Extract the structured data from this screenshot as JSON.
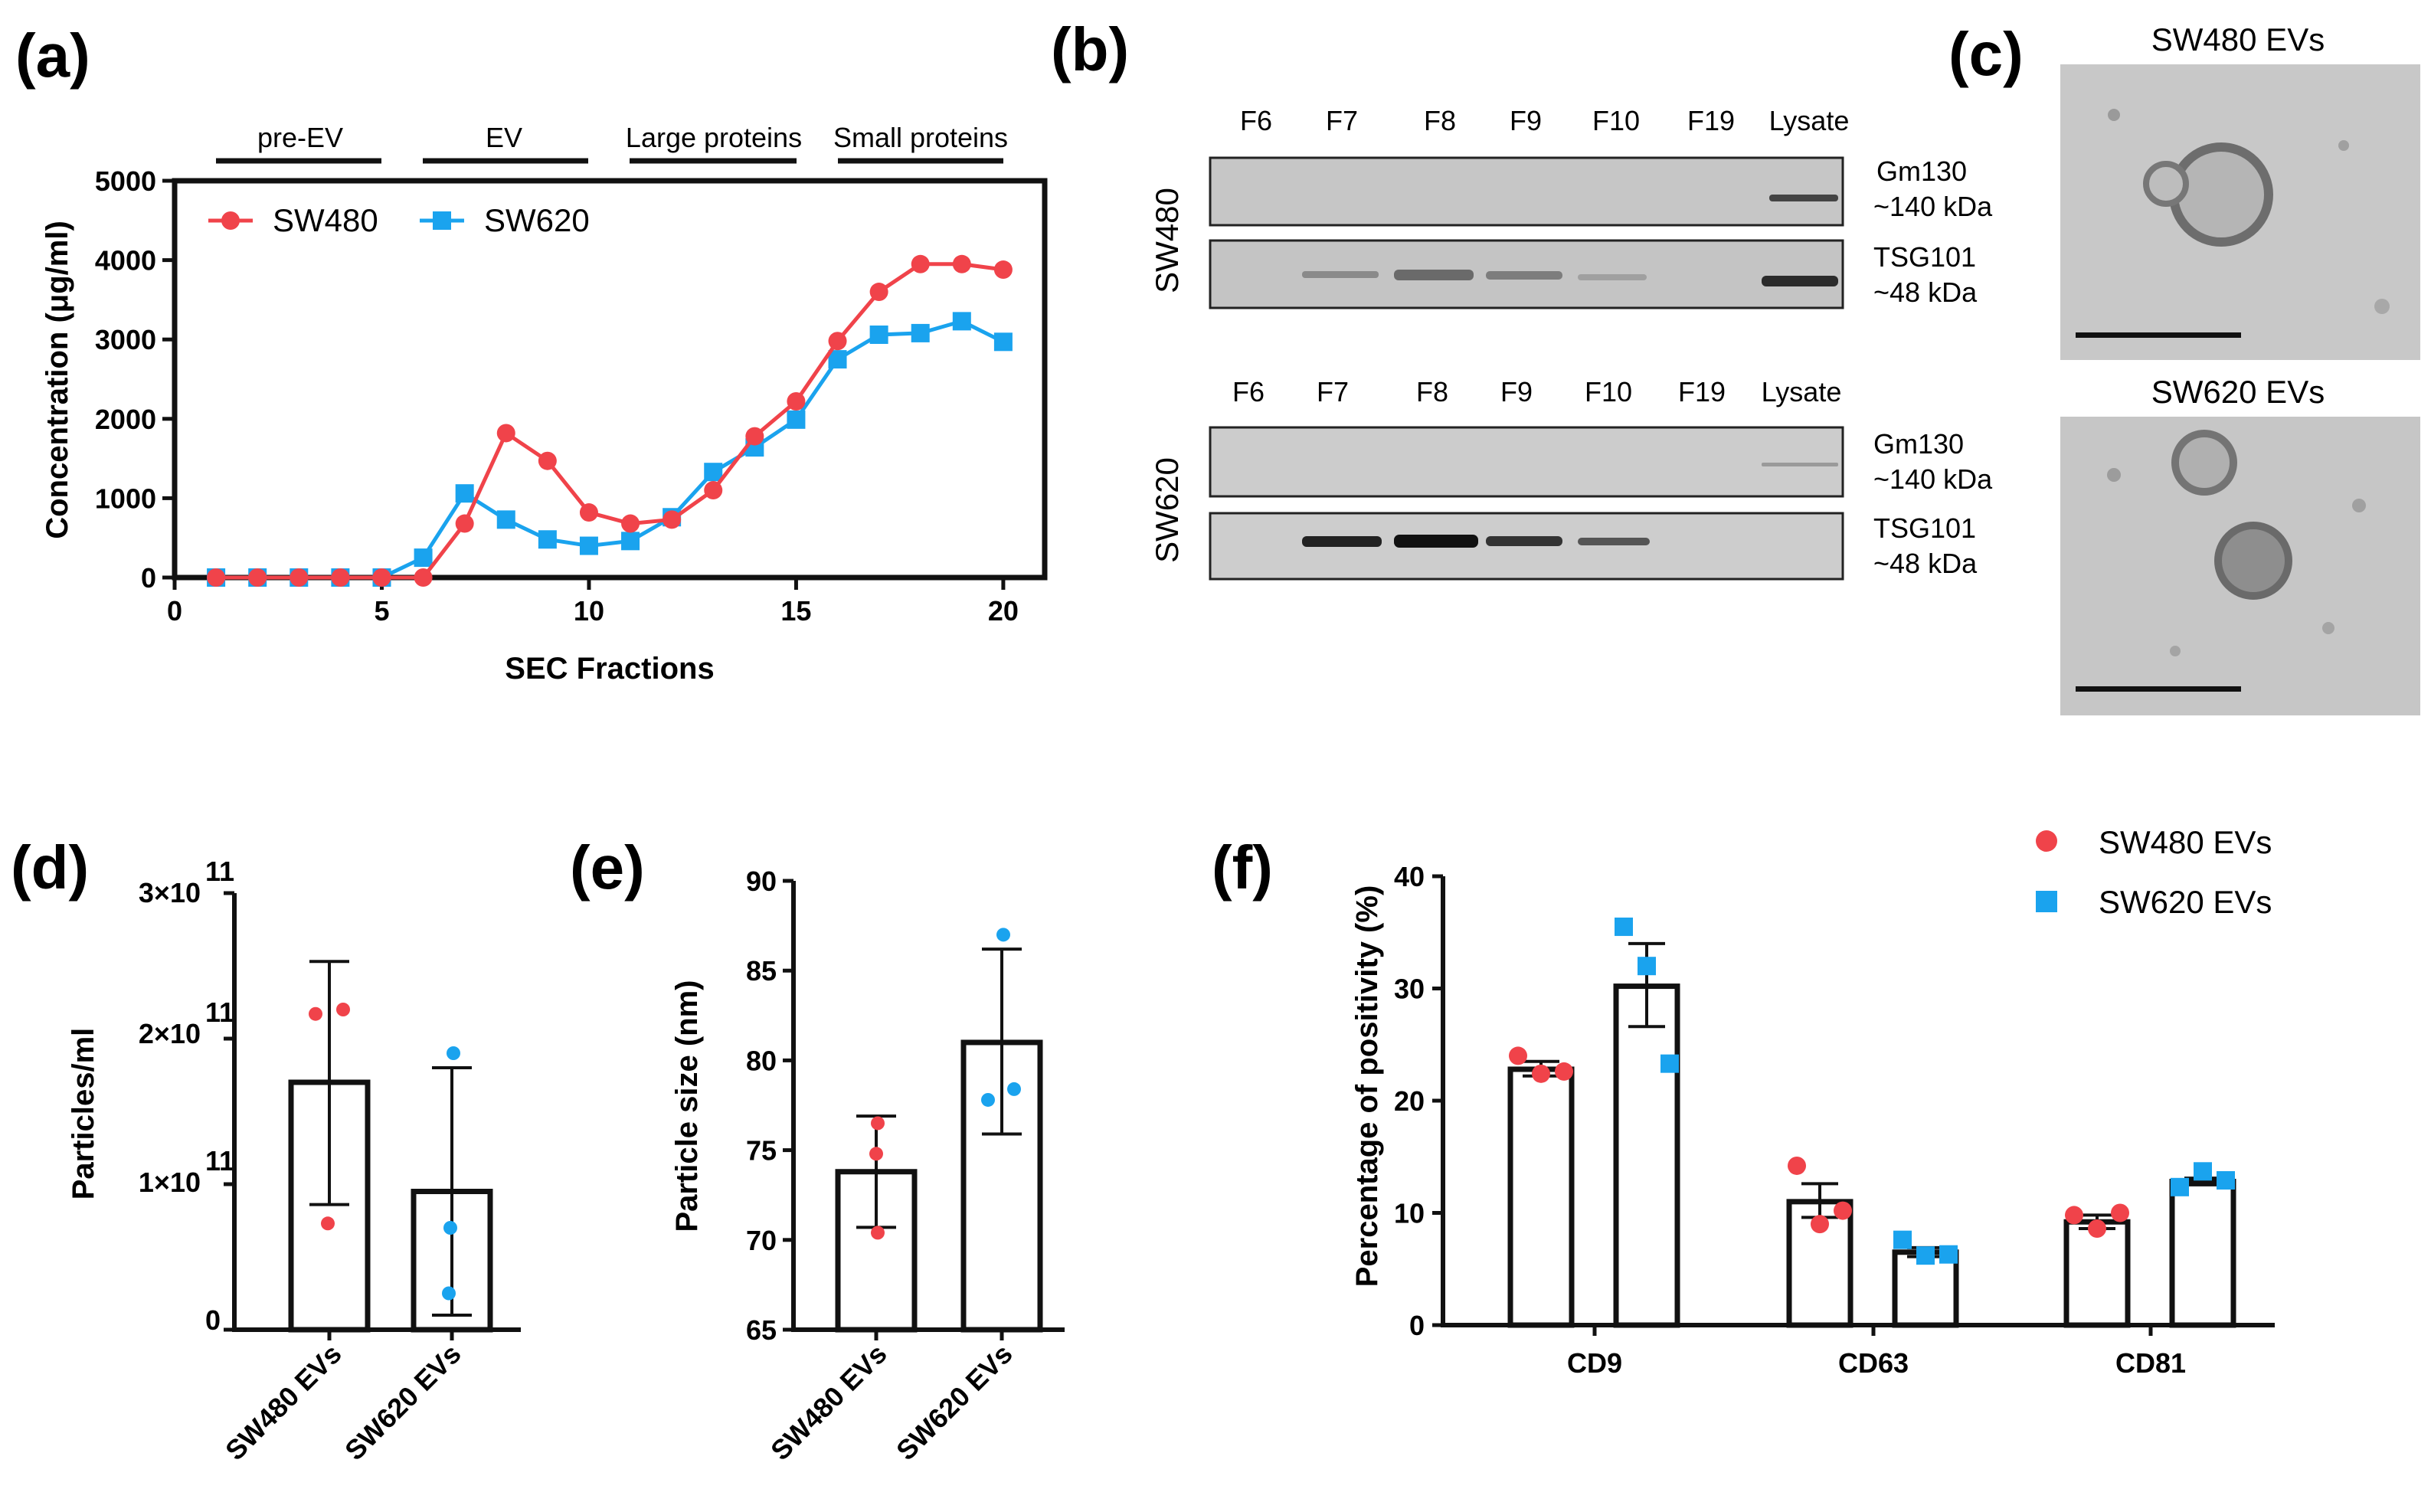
{
  "colors": {
    "sw480": "#f0434a",
    "sw620": "#1aa3ee",
    "blot_bg": "#c6c6c6",
    "em_bg": "#c8c8c8"
  },
  "panels": {
    "a": {
      "label": "(a)",
      "sections": [
        "pre-EV",
        "EV",
        "Large proteins",
        "Small proteins"
      ],
      "xlabel": "SEC Fractions",
      "ylabel": "Concentration (μg/ml)",
      "xticks": [
        "0",
        "5",
        "10",
        "15",
        "20"
      ],
      "yticks": [
        "0",
        "1000",
        "2000",
        "3000",
        "4000",
        "5000"
      ],
      "legend": [
        "SW480",
        "SW620"
      ]
    },
    "b": {
      "label": "(b)",
      "lanes": [
        "F6",
        "F7",
        "F8",
        "F9",
        "F10",
        "F19",
        "Lysate"
      ],
      "cell_lines": [
        "SW480",
        "SW620"
      ],
      "markers": [
        {
          "name": "Gm130",
          "size": "~140 kDa"
        },
        {
          "name": "TSG101",
          "size": "~48 kDa"
        }
      ]
    },
    "c": {
      "label": "(c)",
      "images": [
        {
          "title": "SW480 EVs",
          "icon": "em-vesicle-image"
        },
        {
          "title": "SW620 EVs",
          "icon": "em-vesicle-image"
        }
      ]
    },
    "d": {
      "label": "(d)",
      "ylabel": "Particles/ml",
      "yticks": [
        "0",
        "1×10",
        "2×10",
        "3×10"
      ],
      "exponent": "11",
      "categories": [
        "SW480 EVs",
        "SW620 EVs"
      ]
    },
    "e": {
      "label": "(e)",
      "ylabel": "Particle size (nm)",
      "yticks": [
        "65",
        "70",
        "75",
        "80",
        "85",
        "90"
      ],
      "categories": [
        "SW480 EVs",
        "SW620 EVs"
      ]
    },
    "f": {
      "label": "(f)",
      "ylabel": "Percentage of positivity (%)",
      "yticks": [
        "0",
        "10",
        "20",
        "30",
        "40"
      ],
      "categories": [
        "CD9",
        "CD63",
        "CD81"
      ],
      "legend": [
        "SW480 EVs",
        "SW620 EVs"
      ]
    }
  },
  "chart_data": [
    {
      "panel": "a",
      "type": "line",
      "title": "",
      "xlabel": "SEC Fractions",
      "ylabel": "Concentration (μg/ml)",
      "xlim": [
        0,
        21
      ],
      "ylim": [
        0,
        5000
      ],
      "x": [
        1,
        2,
        3,
        4,
        5,
        6,
        7,
        8,
        9,
        10,
        11,
        12,
        13,
        14,
        15,
        16,
        17,
        18,
        19,
        20
      ],
      "series": [
        {
          "name": "SW480",
          "values": [
            0,
            0,
            0,
            0,
            0,
            0,
            680,
            1820,
            1470,
            820,
            680,
            730,
            1100,
            1780,
            2220,
            2980,
            3600,
            3950,
            3950,
            3880
          ]
        },
        {
          "name": "SW620",
          "values": [
            0,
            0,
            0,
            0,
            0,
            250,
            1060,
            730,
            480,
            400,
            460,
            760,
            1330,
            1640,
            1990,
            2750,
            3060,
            3080,
            3230,
            2970
          ]
        }
      ]
    },
    {
      "panel": "d",
      "type": "bar",
      "ylabel": "Particles/ml",
      "ylim": [
        0,
        300000000000.0
      ],
      "categories": [
        "SW480 EVs",
        "SW620 EVs"
      ],
      "values": [
        170000000000.0,
        95000000000.0
      ],
      "errors": [
        [
          86000000000.0,
          253000000000.0
        ],
        [
          10000000000.0,
          180000000000.0
        ]
      ],
      "points": [
        [
          217000000000.0,
          220000000000.0,
          73000000000.0
        ],
        [
          190000000000.0,
          70000000000.0,
          25000000000.0
        ]
      ]
    },
    {
      "panel": "e",
      "type": "bar",
      "ylabel": "Particle size (nm)",
      "ylim": [
        65,
        90
      ],
      "categories": [
        "SW480 EVs",
        "SW620 EVs"
      ],
      "values": [
        73.8,
        81.0
      ],
      "errors": [
        [
          70.7,
          76.9
        ],
        [
          75.9,
          86.2
        ]
      ],
      "points": [
        [
          76.5,
          74.8,
          70.4
        ],
        [
          87.0,
          77.8,
          78.4
        ]
      ]
    },
    {
      "panel": "f",
      "type": "bar",
      "ylabel": "Percentage of positivity (%)",
      "ylim": [
        0,
        40
      ],
      "categories": [
        "CD9",
        "CD63",
        "CD81"
      ],
      "series": [
        {
          "name": "SW480 EVs",
          "values": [
            22.8,
            11.0,
            9.2
          ],
          "errors": [
            [
              22.2,
              23.5
            ],
            [
              9.6,
              12.6
            ],
            [
              8.6,
              9.8
            ]
          ],
          "points": [
            [
              24.0,
              22.4,
              22.6
            ],
            [
              14.2,
              9.0,
              10.2
            ],
            [
              9.8,
              8.6,
              10.0
            ]
          ]
        },
        {
          "name": "SW620 EVs",
          "values": [
            30.2,
            6.5,
            12.8
          ],
          "errors": [
            [
              26.6,
              34.0
            ],
            [
              6.1,
              6.9
            ],
            [
              12.5,
              13.1
            ]
          ],
          "points": [
            [
              35.5,
              32.0,
              23.3
            ],
            [
              7.6,
              6.2,
              6.3
            ],
            [
              12.3,
              13.7,
              12.9
            ]
          ]
        }
      ]
    }
  ]
}
